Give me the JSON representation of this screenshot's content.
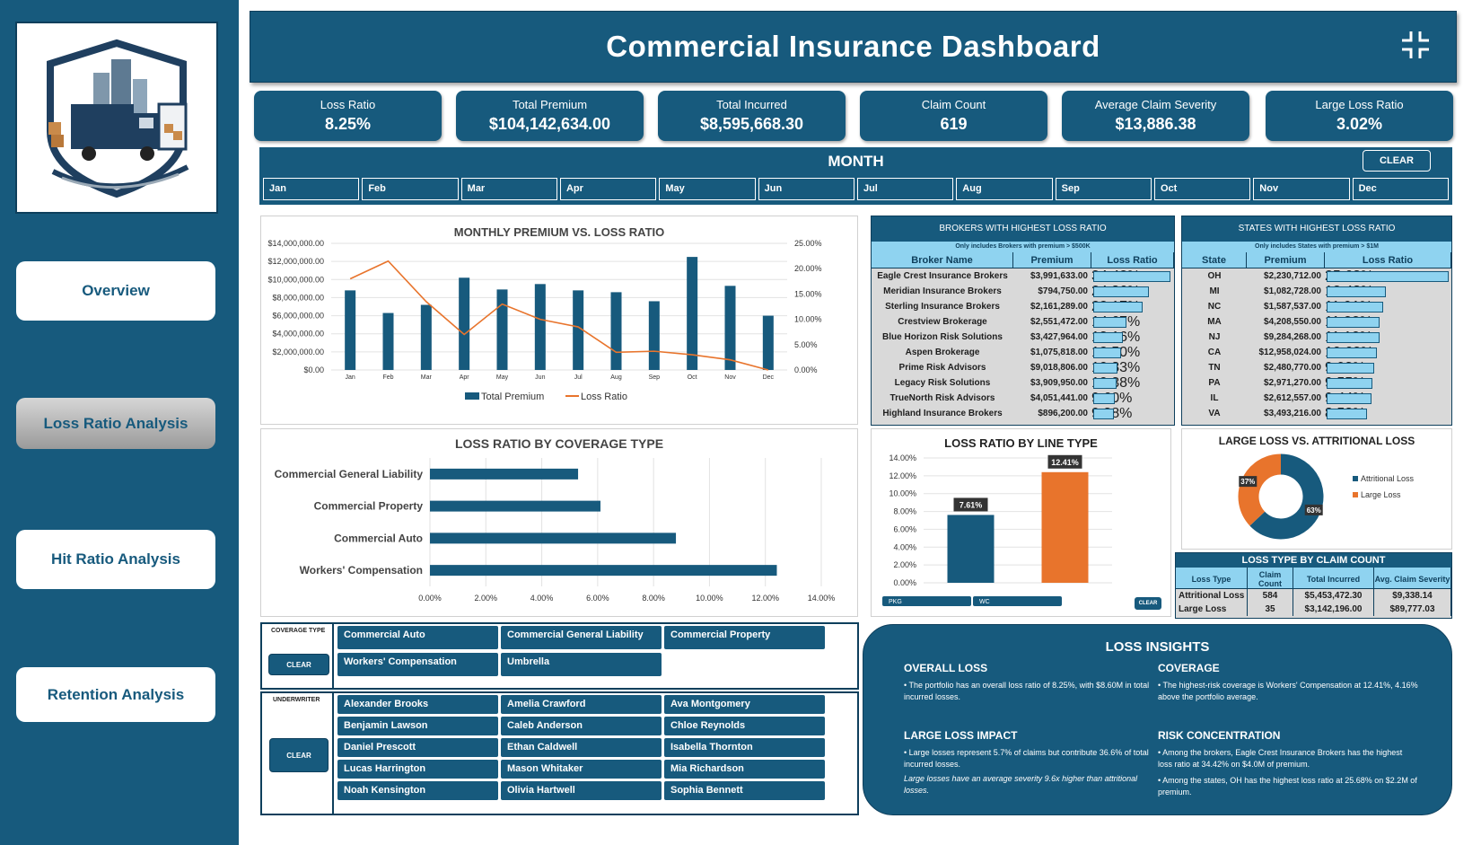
{
  "colors": {
    "primary": "#175a7d",
    "accent": "#e8742c",
    "light": "#8fd3f0",
    "dark": "#0e3f5c"
  },
  "nav": {
    "overview": "Overview",
    "loss_ratio": "Loss Ratio Analysis",
    "hit_ratio": "Hit Ratio Analysis",
    "retention": "Retention Analysis"
  },
  "header": {
    "title": "Commercial Insurance Dashboard",
    "collapse_icon": "collapse-arrows-icon"
  },
  "kpis": [
    {
      "label": "Loss Ratio",
      "value": "8.25%"
    },
    {
      "label": "Total Premium",
      "value": "$104,142,634.00"
    },
    {
      "label": "Total Incurred",
      "value": "$8,595,668.30"
    },
    {
      "label": "Claim Count",
      "value": "619"
    },
    {
      "label": "Average Claim Severity",
      "value": "$13,886.38"
    },
    {
      "label": "Large Loss Ratio",
      "value": "3.02%"
    }
  ],
  "month_slicer": {
    "title": "MONTH",
    "clear": "CLEAR",
    "months": [
      "Jan",
      "Feb",
      "Mar",
      "Apr",
      "May",
      "Jun",
      "Jul",
      "Aug",
      "Sep",
      "Oct",
      "Nov",
      "Dec"
    ]
  },
  "chart_data": [
    {
      "type": "bar+line",
      "title": "MONTHLY PREMIUM VS. LOSS RATIO",
      "categories": [
        "Jan",
        "Feb",
        "Mar",
        "Apr",
        "May",
        "Jun",
        "Jul",
        "Aug",
        "Sep",
        "Oct",
        "Nov",
        "Dec"
      ],
      "series": [
        {
          "name": "Total Premium",
          "type": "bar",
          "axis": "left",
          "values": [
            8800000,
            6300000,
            7200000,
            10200000,
            8900000,
            9500000,
            8800000,
            8600000,
            7600000,
            12500000,
            9300000,
            6000000
          ]
        },
        {
          "name": "Loss Ratio",
          "type": "line",
          "axis": "right",
          "values": [
            0.18,
            0.215,
            0.135,
            0.07,
            0.13,
            0.1,
            0.085,
            0.035,
            0.037,
            0.03,
            0.02,
            0.0
          ]
        }
      ],
      "y_left_ticks": [
        "$14,000,000.00",
        "$12,000,000.00",
        "$10,000,000.00",
        "$8,000,000.00",
        "$6,000,000.00",
        "$4,000,000.00",
        "$2,000,000.00",
        "$0.00"
      ],
      "y_right_ticks": [
        "25.00%",
        "20.00%",
        "15.00%",
        "10.00%",
        "5.00%",
        "0.00%"
      ],
      "ylim_left": [
        0,
        14000000
      ],
      "ylim_right": [
        0,
        0.25
      ],
      "legend": "bottom"
    },
    {
      "type": "bar",
      "orientation": "horizontal",
      "title": "LOSS RATIO BY COVERAGE TYPE",
      "categories": [
        "Commercial General Liability",
        "Commercial Property",
        "Commercial Auto",
        "Workers' Compensation"
      ],
      "values": [
        0.053,
        0.061,
        0.088,
        0.1241
      ],
      "x_ticks": [
        "0.00%",
        "2.00%",
        "4.00%",
        "6.00%",
        "8.00%",
        "10.00%",
        "12.00%",
        "14.00%"
      ],
      "xlim": [
        0,
        0.14
      ]
    },
    {
      "type": "bar",
      "title": "LOSS RATIO BY LINE TYPE",
      "categories": [
        "PKG",
        "WC"
      ],
      "values": [
        0.0761,
        0.1241
      ],
      "data_labels": [
        "7.61%",
        "12.41%"
      ],
      "y_ticks": [
        "14.00%",
        "12.00%",
        "10.00%",
        "8.00%",
        "6.00%",
        "4.00%",
        "2.00%",
        "0.00%"
      ],
      "ylim": [
        0,
        0.14
      ],
      "clear": "CLEAR"
    },
    {
      "type": "pie",
      "title": "LARGE LOSS VS. ATTRITIONAL LOSS",
      "slices": [
        {
          "name": "Attritional Loss",
          "value": 63,
          "label": "63%"
        },
        {
          "name": "Large Loss",
          "value": 37,
          "label": "37%"
        }
      ],
      "legend": "right"
    }
  ],
  "brokers_table": {
    "title": "BROKERS WITH HIGHEST LOSS RATIO",
    "note": "Only includes Brokers with premium > $500K",
    "columns": [
      "Broker Name",
      "Premium",
      "Loss Ratio"
    ],
    "rows": [
      {
        "name": "Eagle Crest Insurance Brokers",
        "premium": "$3,991,633.00",
        "ratio": "34.42%",
        "v": 0.3442
      },
      {
        "name": "Meridian Insurance Brokers",
        "premium": "$794,750.00",
        "ratio": "24.86%",
        "v": 0.2486
      },
      {
        "name": "Sterling Insurance Brokers",
        "premium": "$2,161,289.00",
        "ratio": "22.17%",
        "v": 0.2217
      },
      {
        "name": "Crestview Brokerage",
        "premium": "$2,551,472.00",
        "ratio": "14.67%",
        "v": 0.1467
      },
      {
        "name": "Blue Horizon Risk Solutions",
        "premium": "$3,427,964.00",
        "ratio": "13.16%",
        "v": 0.1316
      },
      {
        "name": "Aspen Brokerage",
        "premium": "$1,075,818.00",
        "ratio": "12.50%",
        "v": 0.125
      },
      {
        "name": "Prime Risk Advisors",
        "premium": "$9,018,806.00",
        "ratio": "10.83%",
        "v": 0.1083
      },
      {
        "name": "Legacy Risk Solutions",
        "premium": "$3,909,950.00",
        "ratio": "10.38%",
        "v": 0.1038
      },
      {
        "name": "TrueNorth Risk Advisors",
        "premium": "$4,051,441.00",
        "ratio": "9.60%",
        "v": 0.096
      },
      {
        "name": "Highland Insurance Brokers",
        "premium": "$896,200.00",
        "ratio": "9.38%",
        "v": 0.0938
      }
    ]
  },
  "states_table": {
    "title": "STATES WITH HIGHEST LOSS RATIO",
    "note": "Only includes States with premium > $1M",
    "columns": [
      "State",
      "Premium",
      "Loss Ratio"
    ],
    "rows": [
      {
        "name": "OH",
        "premium": "$2,230,712.00",
        "ratio": "25.68%",
        "v": 0.2568
      },
      {
        "name": "MI",
        "premium": "$1,082,728.00",
        "ratio": "12.48%",
        "v": 0.1248
      },
      {
        "name": "NC",
        "premium": "$1,587,537.00",
        "ratio": "11.91%",
        "v": 0.1191
      },
      {
        "name": "MA",
        "premium": "$4,208,550.00",
        "ratio": "11.22%",
        "v": 0.1122
      },
      {
        "name": "NJ",
        "premium": "$9,284,268.00",
        "ratio": "11.10%",
        "v": 0.111
      },
      {
        "name": "CA",
        "premium": "$12,958,024.00",
        "ratio": "10.62%",
        "v": 0.1062
      },
      {
        "name": "TN",
        "premium": "$2,480,770.00",
        "ratio": "9.93%",
        "v": 0.0993
      },
      {
        "name": "PA",
        "premium": "$2,971,270.00",
        "ratio": "9.55%",
        "v": 0.0955
      },
      {
        "name": "IL",
        "premium": "$2,612,557.00",
        "ratio": "9.44%",
        "v": 0.0944
      },
      {
        "name": "VA",
        "premium": "$3,493,216.00",
        "ratio": "8.58%",
        "v": 0.0858
      }
    ]
  },
  "loss_type_table": {
    "title": "LOSS TYPE BY CLAIM COUNT",
    "columns": [
      "Loss Type",
      "Claim Count",
      "Total Incurred",
      "Avg. Claim Severity"
    ],
    "rows": [
      [
        "Attritional Loss",
        "584",
        "$5,453,472.30",
        "$9,338.14"
      ],
      [
        "Large Loss",
        "35",
        "$3,142,196.00",
        "$89,777.03"
      ]
    ]
  },
  "coverage_slicer": {
    "label": "COVERAGE TYPE",
    "clear": "CLEAR",
    "items": [
      "Commercial Auto",
      "Commercial General Liability",
      "Commercial Property",
      "Workers' Compensation",
      "Umbrella"
    ]
  },
  "underwriter_slicer": {
    "label": "UNDERWRITER",
    "clear": "CLEAR",
    "items": [
      "Alexander Brooks",
      "Amelia Crawford",
      "Ava Montgomery",
      "Benjamin Lawson",
      "Caleb Anderson",
      "Chloe Reynolds",
      "Daniel Prescott",
      "Ethan Caldwell",
      "Isabella Thornton",
      "Lucas Harrington",
      "Mason Whitaker",
      "Mia Richardson",
      "Noah Kensington",
      "Olivia Hartwell",
      "Sophia Bennett"
    ]
  },
  "insights": {
    "title": "LOSS INSIGHTS",
    "overall_title": "OVERALL LOSS",
    "overall_text": "• The portfolio has an overall loss ratio of 8.25%, with $8.60M in total incurred losses.",
    "coverage_title": "COVERAGE",
    "coverage_text": "• The highest-risk coverage is Workers' Compensation at 12.41%, 4.16% above the portfolio average.",
    "large_title": "LARGE LOSS IMPACT",
    "large_text": "• Large losses represent 5.7% of claims but contribute 36.6% of total incurred losses.",
    "large_note": "Large losses have an average severity 9.6x higher than attritional losses.",
    "risk_title": "RISK CONCENTRATION",
    "risk_text1": "• Among the brokers, Eagle Crest Insurance Brokers has the highest loss ratio at 34.42% on $4.0M of premium.",
    "risk_text2": "• Among the states, OH has the highest loss ratio at 25.68% on $2.2M of premium."
  }
}
